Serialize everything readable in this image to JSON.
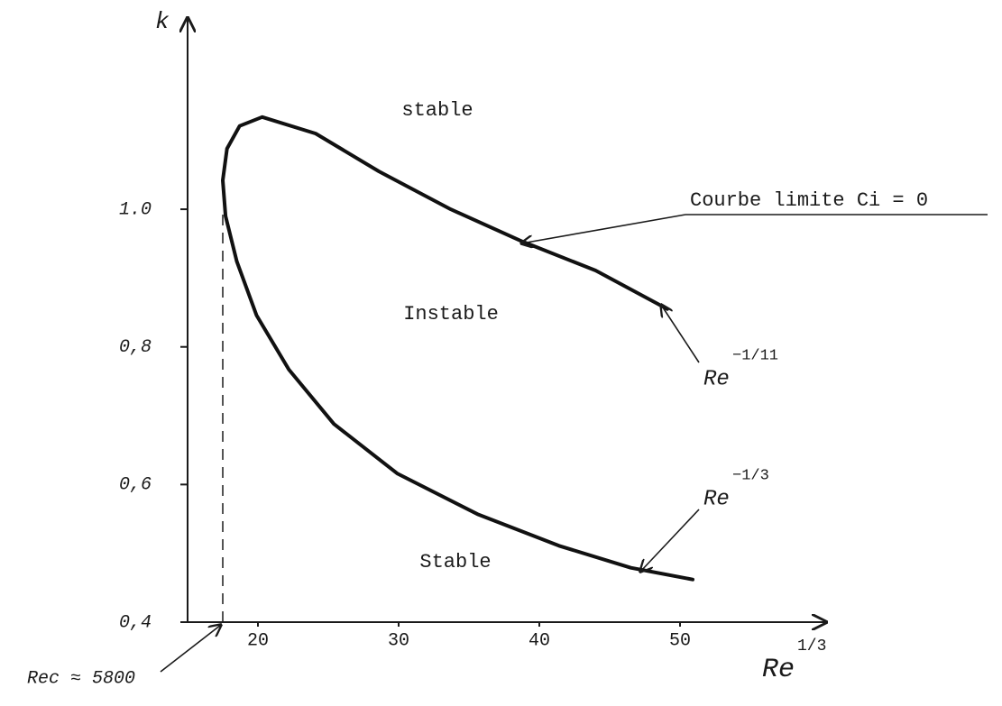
{
  "chart_data": {
    "type": "line",
    "y_label": "k",
    "x_label": "Re",
    "x_label_sup": "1/3",
    "xlim": [
      15,
      60
    ],
    "ylim": [
      0.4,
      1.27
    ],
    "xticks": [
      20,
      30,
      40,
      50
    ],
    "yticks": [
      {
        "value": 0.4,
        "label": "0,4"
      },
      {
        "value": 0.6,
        "label": "0,6"
      },
      {
        "value": 0.8,
        "label": "0,8"
      },
      {
        "value": 1.0,
        "label": "1.0"
      }
    ],
    "grid": false,
    "series": [
      {
        "color": "#111111",
        "x": [
          49.1,
          44.0,
          38.8,
          33.7,
          28.6,
          24.1,
          20.3,
          18.7,
          17.8,
          17.5,
          17.7,
          18.5,
          19.9,
          22.2,
          25.4,
          29.9,
          35.6,
          41.4,
          46.5,
          50.9
        ],
        "values": [
          0.855,
          0.911,
          0.953,
          1.0,
          1.055,
          1.11,
          1.134,
          1.121,
          1.088,
          1.042,
          0.99,
          0.924,
          0.846,
          0.767,
          0.688,
          0.616,
          0.557,
          0.511,
          0.479,
          0.462
        ]
      }
    ],
    "regions": [
      "stable",
      "Instable",
      "Stable"
    ],
    "curve_label": "Courbe limite Ci = 0",
    "branch_labels": [
      {
        "text": "Re",
        "sup": "−1/11"
      },
      {
        "text": "Re",
        "sup": "−1/3"
      }
    ],
    "critical": {
      "label": "Rec ≈ 5800",
      "x": 17.5,
      "k": 1.0
    }
  }
}
